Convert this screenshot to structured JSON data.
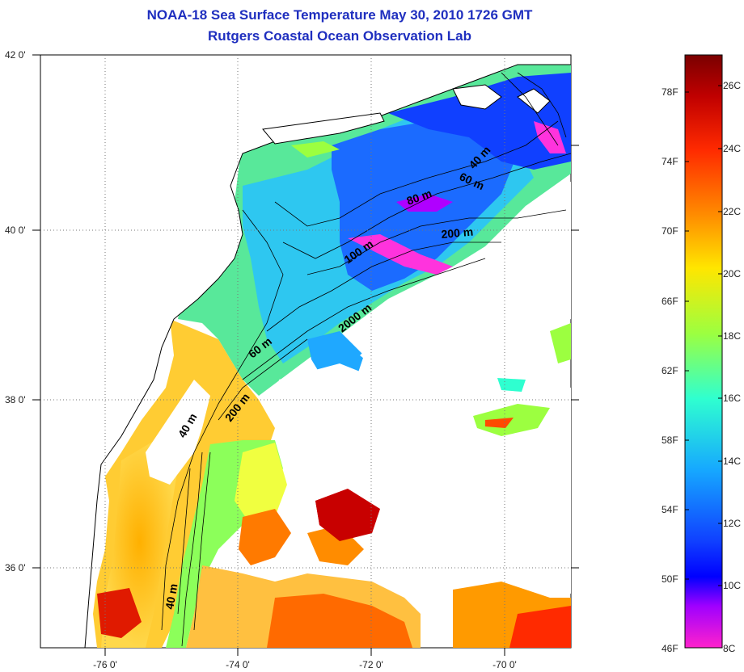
{
  "title": {
    "line1": "NOAA-18 Sea Surface Temperature May 30, 2010 1726 GMT",
    "line2": "Rutgers Coastal Ocean Observation Lab"
  },
  "map": {
    "lat_ticks": [
      "42 0'",
      "40 0'",
      "38 0'",
      "36 0'"
    ],
    "lon_ticks": [
      "-76 0'",
      "-74 0'",
      "-72 0'",
      "-70 0'"
    ],
    "isobath_labels": [
      "40 m",
      "60 m",
      "80 m",
      "200 m",
      "100 m",
      "2000 m",
      "60 m",
      "200 m",
      "40 m",
      "40 m"
    ]
  },
  "colorbar": {
    "fahrenheit_labels": [
      "78F",
      "74F",
      "70F",
      "66F",
      "62F",
      "58F",
      "54F",
      "50F",
      "46F"
    ],
    "celsius_labels": [
      "26C",
      "24C",
      "22C",
      "20C",
      "18C",
      "16C",
      "14C",
      "12C",
      "10C",
      "8C"
    ],
    "gradient_stops": [
      "#7a0000",
      "#d40000",
      "#ff4a00",
      "#ff9a00",
      "#ffe600",
      "#9cff40",
      "#2fffd0",
      "#16b8ff",
      "#1040ff",
      "#0000ff",
      "#b000ff",
      "#ff22cc"
    ]
  }
}
